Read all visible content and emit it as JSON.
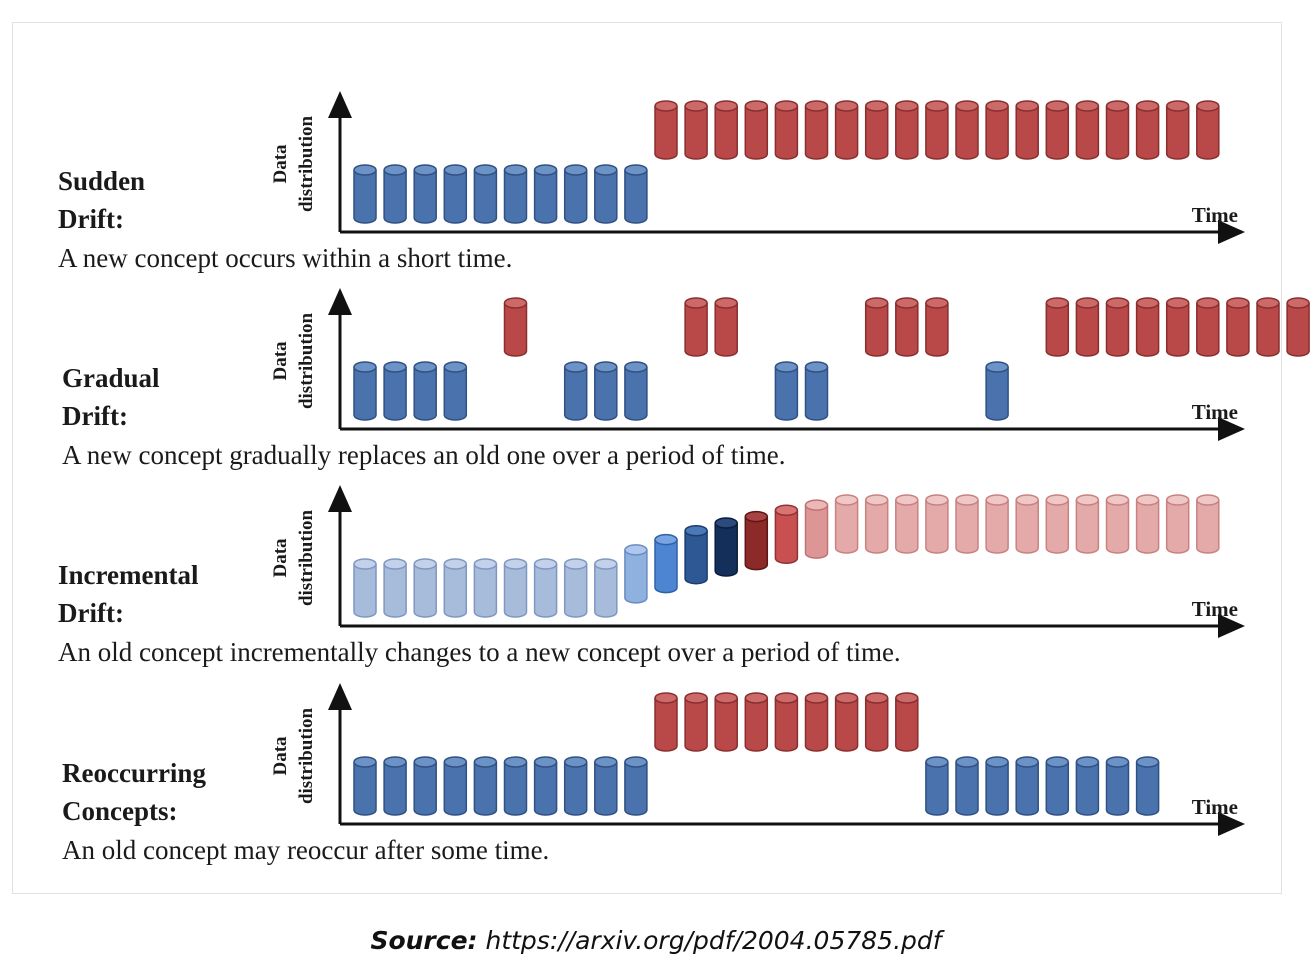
{
  "panels": [
    {
      "id": "sudden",
      "label_lines": [
        "Sudden",
        "Drift:"
      ],
      "description": "A new concept occurs within a short time.",
      "axis": {
        "y": [
          "Data",
          "distribution"
        ],
        "x": "Time"
      },
      "cylinders": [
        "b",
        "b",
        "b",
        "b",
        "b",
        "b",
        "b",
        "b",
        "b",
        "b",
        "r",
        "r",
        "r",
        "r",
        "r",
        "r",
        "r",
        "r",
        "r",
        "r",
        "r",
        "r",
        "r",
        "r",
        "r",
        "r",
        "r",
        "r",
        "r"
      ]
    },
    {
      "id": "gradual",
      "label_lines": [
        "Gradual",
        "Drift:"
      ],
      "description": "A new concept gradually replaces an old one over a period of time.",
      "axis": {
        "y": [
          "Data",
          "distribution"
        ],
        "x": "Time"
      },
      "cylinders": [
        "b",
        "b",
        "b",
        "b",
        "_",
        "r",
        "_",
        "b",
        "b",
        "b",
        "_",
        "r",
        "r",
        "_",
        "b",
        "b",
        "_",
        "r",
        "r",
        "r",
        "_",
        "b",
        "_",
        "r",
        "r",
        "r",
        "r",
        "r",
        "r",
        "r",
        "r",
        "r",
        "r",
        "r",
        "r",
        "r"
      ]
    },
    {
      "id": "incremental",
      "label_lines": [
        "Incremental",
        "Drift:"
      ],
      "description": "An old concept incrementally changes to a new concept over a period of time.",
      "axis": {
        "y": [
          "Data",
          "distribution"
        ],
        "x": "Time"
      },
      "cylinders": [
        "lb",
        "lb",
        "lb",
        "lb",
        "lb",
        "lb",
        "lb",
        "lb",
        "lb",
        "i1",
        "i2",
        "i3",
        "i4",
        "i5",
        "i6",
        "i7",
        "lr",
        "lr",
        "lr",
        "lr",
        "lr",
        "lr",
        "lr",
        "lr",
        "lr",
        "lr",
        "lr",
        "lr",
        "lr"
      ]
    },
    {
      "id": "reoccurring",
      "label_lines": [
        "Reoccurring",
        "Concepts:"
      ],
      "description": "An old concept may reoccur after some time.",
      "axis": {
        "y": [
          "Data",
          "distribution"
        ],
        "x": "Time"
      },
      "cylinders": [
        "b",
        "b",
        "b",
        "b",
        "b",
        "b",
        "b",
        "b",
        "b",
        "b",
        "r",
        "r",
        "r",
        "r",
        "r",
        "r",
        "r",
        "r",
        "r",
        "b",
        "b",
        "b",
        "b",
        "b",
        "b",
        "b",
        "b"
      ]
    }
  ],
  "cylinder_styles": {
    "b": {
      "level": "low",
      "fill": "#4a72ad",
      "top": "#6d92c6",
      "stroke": "#2f5183"
    },
    "r": {
      "level": "high",
      "fill": "#b94848",
      "top": "#cc6a6a",
      "stroke": "#8a2e2e"
    },
    "lb": {
      "level": "low",
      "fill": "#a7bbdb",
      "top": "#c3d2ea",
      "stroke": "#7f97c1"
    },
    "lr": {
      "level": "high",
      "fill": "#e3aaa9",
      "top": "#eec7c6",
      "stroke": "#c88280"
    },
    "i1": {
      "level": 0.22,
      "fill": "#8fb1e0",
      "top": "#afc7ec",
      "stroke": "#6a8cc0"
    },
    "i2": {
      "level": 0.38,
      "fill": "#4d85d2",
      "top": "#79a4e2",
      "stroke": "#2f61a8"
    },
    "i3": {
      "level": 0.52,
      "fill": "#2d5894",
      "top": "#4b79b8",
      "stroke": "#1b3d6c"
    },
    "i4": {
      "level": 0.64,
      "fill": "#152f5b",
      "top": "#2b4a7d",
      "stroke": "#0b1d3a"
    },
    "i5": {
      "level": 0.74,
      "fill": "#8c2a2a",
      "top": "#a84343",
      "stroke": "#5e1616"
    },
    "i6": {
      "level": 0.84,
      "fill": "#c85050",
      "top": "#d87474",
      "stroke": "#913333"
    },
    "i7": {
      "level": 0.92,
      "fill": "#dd9696",
      "top": "#ebb8b8",
      "stroke": "#c07272"
    }
  },
  "source": {
    "prefix": "Source:",
    "url": "https://arxiv.org/pdf/2004.05785.pdf"
  }
}
